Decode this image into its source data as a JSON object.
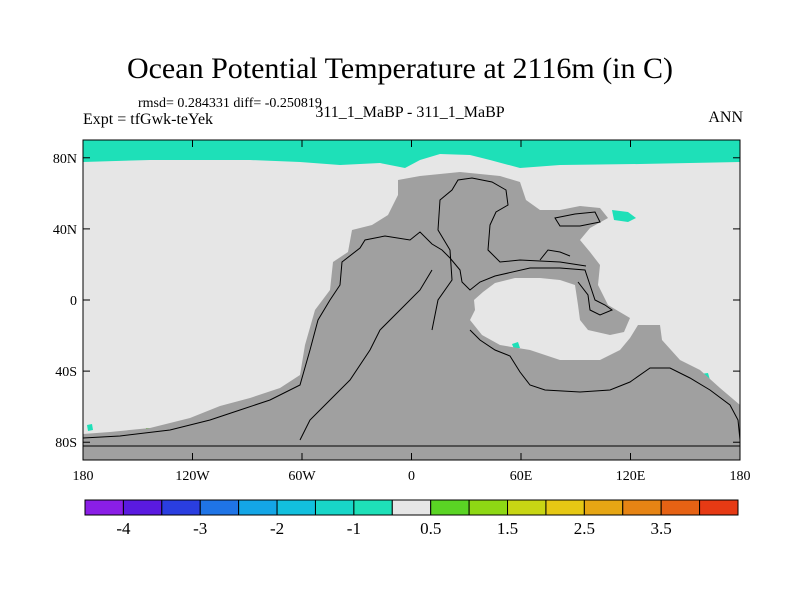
{
  "chart_data": {
    "type": "heatmap",
    "title": "Ocean Potential Temperature at 2116m (in C)",
    "stats_text": "rmsd= 0.284331  diff= -0.250819",
    "left_label": "Expt = tfGwk-teYek",
    "center_label": "311_1_MaBP - 311_1_MaBP",
    "right_label": "ANN",
    "x_ticks": [
      "180",
      "120W",
      "60W",
      "0",
      "60E",
      "120E",
      "180"
    ],
    "x_tick_values": [
      -180,
      -120,
      -60,
      0,
      60,
      120,
      180
    ],
    "y_ticks": [
      "80N",
      "40N",
      "0",
      "40S",
      "80S"
    ],
    "y_tick_values": [
      80,
      40,
      0,
      -40,
      -80
    ],
    "xlim": [
      -180,
      180
    ],
    "ylim": [
      -90,
      90
    ],
    "colorbar": {
      "colors": [
        "#8a1ee6",
        "#5a1ae0",
        "#2a3ee0",
        "#1f74e6",
        "#14a6e6",
        "#12c0de",
        "#18d6c8",
        "#1ee0b8",
        "#e6e6e6",
        "#5ad424",
        "#8ed814",
        "#c8d614",
        "#e6c814",
        "#e6a614",
        "#e68414",
        "#e66214",
        "#e63a14"
      ],
      "labels": [
        "-4",
        "-3",
        "-2",
        "-1",
        "0.5",
        "1.5",
        "2.5",
        "3.5"
      ],
      "label_boundaries": [
        1,
        3,
        5,
        7,
        9,
        11,
        13,
        15
      ]
    }
  },
  "colors": {
    "land": "#a0a0a0",
    "ocean_background": "#e6e6e6",
    "arctic_anomaly": "#1ee0b8",
    "green_anomaly": "#5ad424"
  }
}
